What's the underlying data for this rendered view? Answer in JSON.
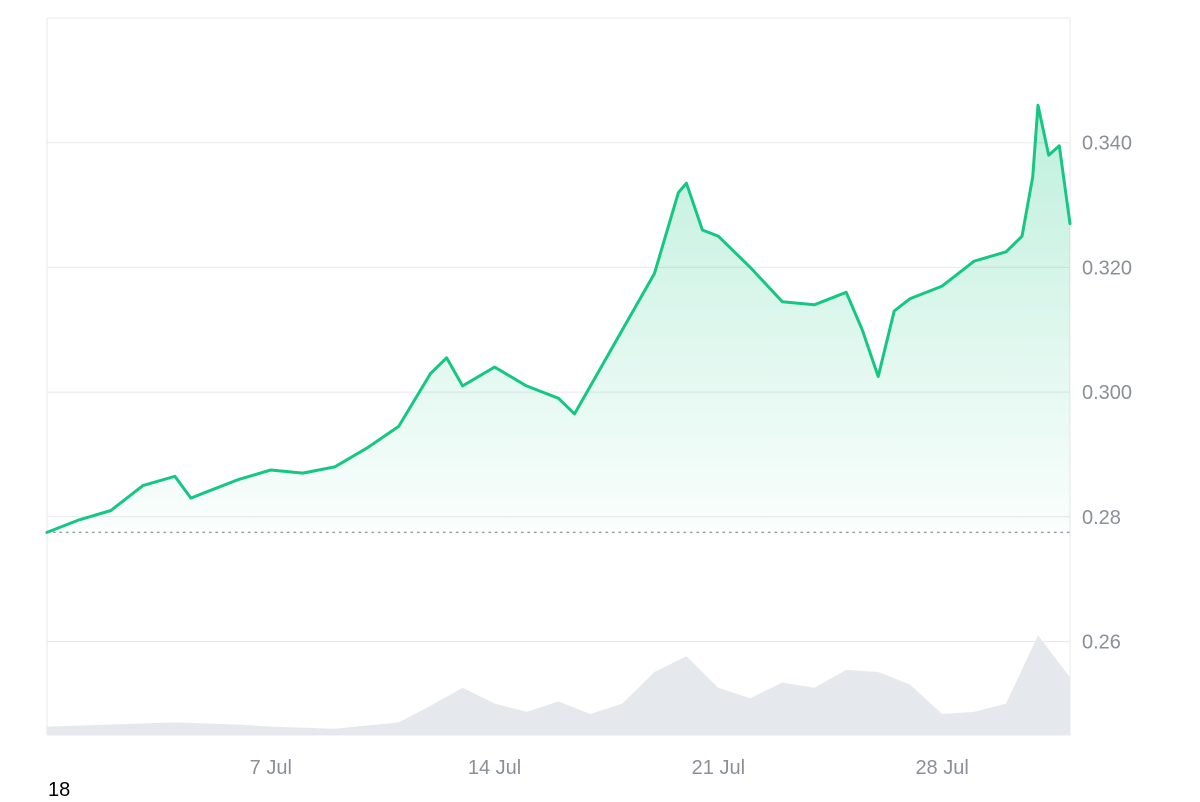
{
  "footer_label": "18",
  "colors": {
    "price_line": "#16c784",
    "area_top": "#16c784",
    "volume_fill": "#e5e9ee",
    "grid": "#e6e8ec",
    "baseline_dots": "#9aa0a8",
    "tick_text": "#8a8f98"
  },
  "chart_data": {
    "type": "area",
    "title": "",
    "xlabel": "",
    "ylabel": "",
    "x_range": [
      "2024-06-30",
      "2024-08-01"
    ],
    "ylim": [
      0.245,
      0.36
    ],
    "y_ticks": [
      0.26,
      0.28,
      0.3,
      0.32,
      0.34
    ],
    "y_tick_labels": [
      "0.26",
      "0.28",
      "0.300",
      "0.320",
      "0.340"
    ],
    "x_ticks": [
      "2024-07-07",
      "2024-07-14",
      "2024-07-21",
      "2024-07-28"
    ],
    "x_tick_labels": [
      "7 Jul",
      "14 Jul",
      "21 Jul",
      "28 Jul"
    ],
    "baseline": 0.2775,
    "y_axis_position": "right",
    "grid": true,
    "legend": "none",
    "series": [
      {
        "values": [
          [
            "2024-06-30",
            0.2775
          ],
          [
            "2024-07-01",
            0.2795
          ],
          [
            "2024-07-02",
            0.281
          ],
          [
            "2024-07-03",
            0.285
          ],
          [
            "2024-07-04",
            0.2865
          ],
          [
            "2024-07-04T12",
            0.283
          ],
          [
            "2024-07-05",
            0.284
          ],
          [
            "2024-07-06",
            0.286
          ],
          [
            "2024-07-07",
            0.2875
          ],
          [
            "2024-07-08",
            0.287
          ],
          [
            "2024-07-09",
            0.288
          ],
          [
            "2024-07-10",
            0.291
          ],
          [
            "2024-07-11",
            0.2945
          ],
          [
            "2024-07-12",
            0.303
          ],
          [
            "2024-07-12T12",
            0.3055
          ],
          [
            "2024-07-13",
            0.301
          ],
          [
            "2024-07-14",
            0.304
          ],
          [
            "2024-07-15",
            0.301
          ],
          [
            "2024-07-16",
            0.299
          ],
          [
            "2024-07-16T12",
            0.2965
          ],
          [
            "2024-07-17",
            0.301
          ],
          [
            "2024-07-18",
            0.31
          ],
          [
            "2024-07-19",
            0.319
          ],
          [
            "2024-07-19T18",
            0.332
          ],
          [
            "2024-07-20",
            0.3335
          ],
          [
            "2024-07-20T12",
            0.326
          ],
          [
            "2024-07-21",
            0.325
          ],
          [
            "2024-07-22",
            0.32
          ],
          [
            "2024-07-23",
            0.3145
          ],
          [
            "2024-07-24",
            0.314
          ],
          [
            "2024-07-25",
            0.316
          ],
          [
            "2024-07-25T12",
            0.31
          ],
          [
            "2024-07-26",
            0.3025
          ],
          [
            "2024-07-26T12",
            0.313
          ],
          [
            "2024-07-27",
            0.315
          ],
          [
            "2024-07-28",
            0.317
          ],
          [
            "2024-07-29",
            0.321
          ],
          [
            "2024-07-30",
            0.3225
          ],
          [
            "2024-07-30T12",
            0.325
          ],
          [
            "2024-07-30T20",
            0.3345
          ],
          [
            "2024-07-31",
            0.346
          ],
          [
            "2024-07-31T08",
            0.338
          ],
          [
            "2024-07-31T16",
            0.3395
          ],
          [
            "2024-08-01",
            0.327
          ]
        ]
      }
    ],
    "volume": [
      [
        "2024-06-30",
        0.08
      ],
      [
        "2024-07-02",
        0.1
      ],
      [
        "2024-07-04",
        0.12
      ],
      [
        "2024-07-06",
        0.1
      ],
      [
        "2024-07-07",
        0.08
      ],
      [
        "2024-07-09",
        0.06
      ],
      [
        "2024-07-11",
        0.12
      ],
      [
        "2024-07-12",
        0.28
      ],
      [
        "2024-07-13",
        0.45
      ],
      [
        "2024-07-14",
        0.3
      ],
      [
        "2024-07-15",
        0.22
      ],
      [
        "2024-07-16",
        0.32
      ],
      [
        "2024-07-17",
        0.2
      ],
      [
        "2024-07-18",
        0.3
      ],
      [
        "2024-07-19",
        0.6
      ],
      [
        "2024-07-20",
        0.75
      ],
      [
        "2024-07-21",
        0.45
      ],
      [
        "2024-07-22",
        0.35
      ],
      [
        "2024-07-23",
        0.5
      ],
      [
        "2024-07-24",
        0.45
      ],
      [
        "2024-07-25",
        0.62
      ],
      [
        "2024-07-26",
        0.6
      ],
      [
        "2024-07-27",
        0.48
      ],
      [
        "2024-07-28",
        0.2
      ],
      [
        "2024-07-29",
        0.22
      ],
      [
        "2024-07-30",
        0.3
      ],
      [
        "2024-07-31",
        0.95
      ],
      [
        "2024-08-01",
        0.55
      ]
    ]
  }
}
